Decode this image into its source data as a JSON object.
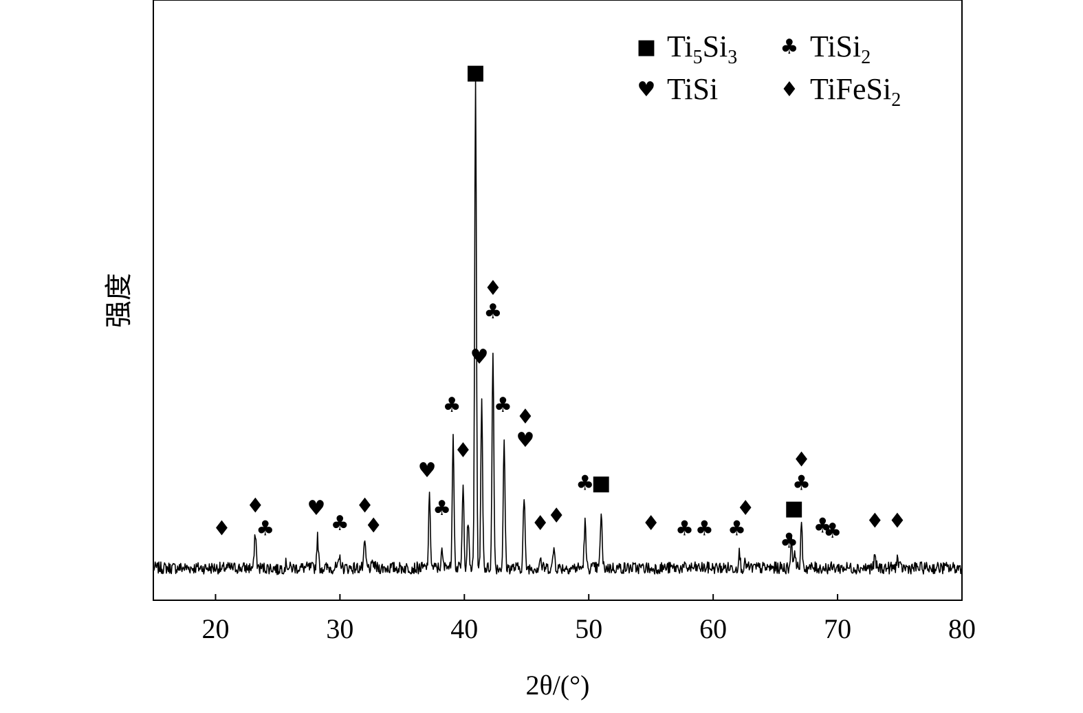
{
  "chart_data": {
    "type": "line",
    "xlabel": "2θ/(°)",
    "ylabel": "强度",
    "xlim": [
      15,
      80
    ],
    "ylim": [
      0,
      100
    ],
    "x_ticks": [
      20,
      30,
      40,
      50,
      60,
      70,
      80
    ],
    "grid": false,
    "show_y_ticks": false,
    "legend_position": "top-right",
    "baseline": 3,
    "noise_amplitude": 1.2,
    "peaks": [
      {
        "x": 20.5,
        "y": 2.5
      },
      {
        "x": 23.2,
        "y": 10
      },
      {
        "x": 23.8,
        "y": 3
      },
      {
        "x": 25.0,
        "y": 2.5
      },
      {
        "x": 25.7,
        "y": 4
      },
      {
        "x": 28.2,
        "y": 9
      },
      {
        "x": 30.0,
        "y": 5
      },
      {
        "x": 32.0,
        "y": 8
      },
      {
        "x": 32.7,
        "y": 4
      },
      {
        "x": 35.3,
        "y": 3
      },
      {
        "x": 37.2,
        "y": 17
      },
      {
        "x": 38.2,
        "y": 6
      },
      {
        "x": 38.6,
        "y": 4
      },
      {
        "x": 39.1,
        "y": 30
      },
      {
        "x": 39.9,
        "y": 19
      },
      {
        "x": 40.3,
        "y": 12
      },
      {
        "x": 40.9,
        "y": 100
      },
      {
        "x": 41.4,
        "y": 36
      },
      {
        "x": 42.3,
        "y": 46
      },
      {
        "x": 43.2,
        "y": 28
      },
      {
        "x": 44.8,
        "y": 17
      },
      {
        "x": 46.1,
        "y": 5
      },
      {
        "x": 47.2,
        "y": 7
      },
      {
        "x": 49.7,
        "y": 12
      },
      {
        "x": 51.0,
        "y": 14
      },
      {
        "x": 52.5,
        "y": 3
      },
      {
        "x": 55.0,
        "y": 2.5
      },
      {
        "x": 57.8,
        "y": 3
      },
      {
        "x": 62.1,
        "y": 6
      },
      {
        "x": 62.6,
        "y": 4
      },
      {
        "x": 66.3,
        "y": 9
      },
      {
        "x": 66.6,
        "y": 6
      },
      {
        "x": 67.1,
        "y": 11
      },
      {
        "x": 68.7,
        "y": 3
      },
      {
        "x": 69.6,
        "y": 3
      },
      {
        "x": 73.0,
        "y": 5
      },
      {
        "x": 74.8,
        "y": 5
      },
      {
        "x": 78.5,
        "y": 3
      }
    ],
    "annotations": [
      {
        "x": 40.9,
        "y": 100,
        "phases": [
          "Ti5Si3"
        ]
      },
      {
        "x": 20.5,
        "y": 9.5,
        "phases": [
          "TiFeSi2"
        ]
      },
      {
        "x": 23.2,
        "y": 14,
        "phases": [
          "TiFeSi2"
        ]
      },
      {
        "x": 24.0,
        "y": 9.5,
        "phases": [
          "TiSi2"
        ]
      },
      {
        "x": 28.1,
        "y": 13.5,
        "phases": [
          "TiSi"
        ]
      },
      {
        "x": 30.0,
        "y": 10.5,
        "phases": [
          "TiSi2"
        ]
      },
      {
        "x": 32.0,
        "y": 14,
        "phases": [
          "TiFeSi2"
        ]
      },
      {
        "x": 32.7,
        "y": 10,
        "phases": [
          "TiFeSi2"
        ]
      },
      {
        "x": 37.0,
        "y": 21,
        "phases": [
          "TiSi"
        ]
      },
      {
        "x": 38.2,
        "y": 13.5,
        "phases": [
          "TiSi2"
        ]
      },
      {
        "x": 39.0,
        "y": 34,
        "phases": [
          "TiSi2"
        ]
      },
      {
        "x": 39.9,
        "y": 25,
        "phases": [
          "TiFeSi2"
        ]
      },
      {
        "x": 41.2,
        "y": 43.5,
        "phases": [
          "TiSi"
        ]
      },
      {
        "x": 42.3,
        "y": 52.5,
        "phases": [
          "TiFeSi2",
          "TiSi2"
        ]
      },
      {
        "x": 43.1,
        "y": 34,
        "phases": [
          "TiSi2"
        ]
      },
      {
        "x": 44.9,
        "y": 27,
        "phases": [
          "TiFeSi2",
          "TiSi"
        ]
      },
      {
        "x": 46.1,
        "y": 10.5,
        "phases": [
          "TiFeSi2"
        ]
      },
      {
        "x": 47.4,
        "y": 12,
        "phases": [
          "TiFeSi2"
        ]
      },
      {
        "x": 49.7,
        "y": 18.5,
        "phases": [
          "TiSi2"
        ]
      },
      {
        "x": 51.0,
        "y": 18.5,
        "phases": [
          "Ti5Si3"
        ]
      },
      {
        "x": 55.0,
        "y": 10.5,
        "phases": [
          "TiFeSi2"
        ]
      },
      {
        "x": 57.7,
        "y": 9.5,
        "phases": [
          "TiSi2"
        ]
      },
      {
        "x": 59.3,
        "y": 9.5,
        "phases": [
          "TiSi2"
        ]
      },
      {
        "x": 61.9,
        "y": 9.5,
        "phases": [
          "TiSi2"
        ]
      },
      {
        "x": 62.6,
        "y": 13.5,
        "phases": [
          "TiFeSi2"
        ]
      },
      {
        "x": 66.1,
        "y": 7,
        "phases": [
          "TiSi2"
        ]
      },
      {
        "x": 66.5,
        "y": 13.5,
        "phases": [
          "Ti5Si3"
        ]
      },
      {
        "x": 67.1,
        "y": 18.5,
        "phases": [
          "TiFeSi2",
          "TiSi2"
        ]
      },
      {
        "x": 68.8,
        "y": 10,
        "phases": [
          "TiSi2"
        ]
      },
      {
        "x": 69.6,
        "y": 9,
        "phases": [
          "TiSi2"
        ]
      },
      {
        "x": 73.0,
        "y": 11,
        "phases": [
          "TiFeSi2"
        ]
      },
      {
        "x": 74.8,
        "y": 11,
        "phases": [
          "TiFeSi2"
        ]
      }
    ],
    "legend": [
      {
        "key": "Ti5Si3",
        "symbol": "■",
        "base": "Ti",
        "sub1": "5",
        "mid": "Si",
        "sub2": "3"
      },
      {
        "key": "TiSi2",
        "symbol": "♣",
        "base": "TiSi",
        "sub1": "2",
        "mid": "",
        "sub2": ""
      },
      {
        "key": "TiSi",
        "symbol": "♥",
        "base": "TiSi",
        "sub1": "",
        "mid": "",
        "sub2": ""
      },
      {
        "key": "TiFeSi2",
        "symbol": "♦",
        "base": "TiFeSi",
        "sub1": "2",
        "mid": "",
        "sub2": ""
      }
    ],
    "line_color": "#000000"
  }
}
